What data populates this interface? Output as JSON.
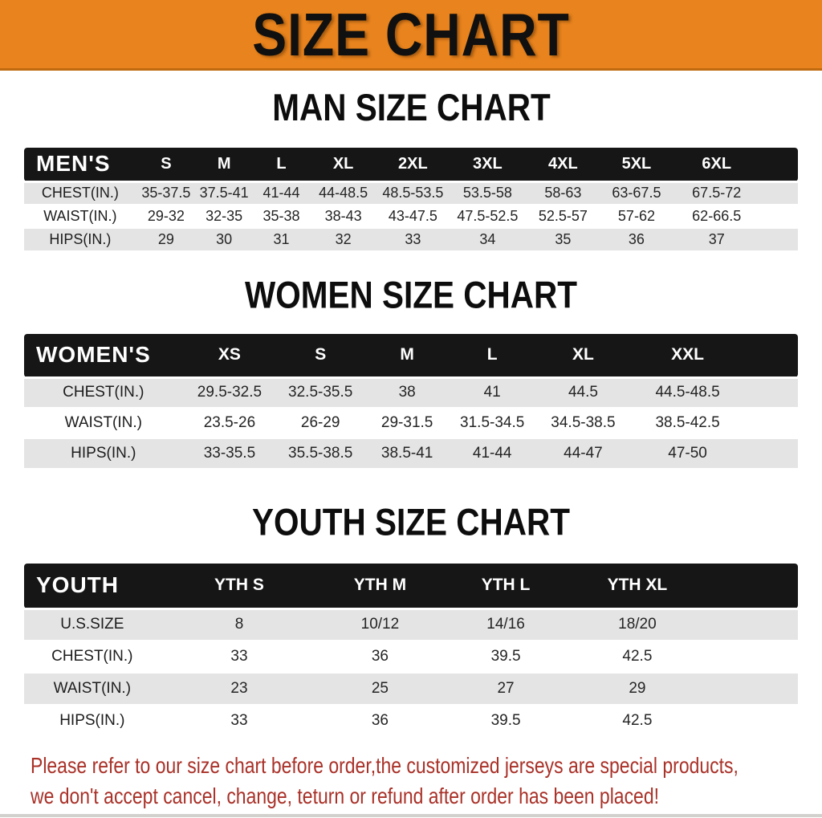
{
  "banner": {
    "title": "SIZE CHART"
  },
  "sections": [
    {
      "title": "MAN SIZE CHART",
      "group_label": "MEN'S",
      "columns": [
        "S",
        "M",
        "L",
        "XL",
        "2XL",
        "3XL",
        "4XL",
        "5XL",
        "6XL"
      ],
      "rows": [
        {
          "label": "CHEST(IN.)",
          "values": [
            "35-37.5",
            "37.5-41",
            "41-44",
            "44-48.5",
            "48.5-53.5",
            "53.5-58",
            "58-63",
            "63-67.5",
            "67.5-72"
          ]
        },
        {
          "label": "WAIST(IN.)",
          "values": [
            "29-32",
            "32-35",
            "35-38",
            "38-43",
            "43-47.5",
            "47.5-52.5",
            "52.5-57",
            "57-62",
            "62-66.5"
          ]
        },
        {
          "label": "HIPS(IN.)",
          "values": [
            "29",
            "30",
            "31",
            "32",
            "33",
            "34",
            "35",
            "36",
            "37"
          ]
        }
      ]
    },
    {
      "title": "WOMEN SIZE CHART",
      "group_label": "WOMEN'S",
      "columns": [
        "XS",
        "S",
        "M",
        "L",
        "XL",
        "XXL"
      ],
      "rows": [
        {
          "label": "CHEST(IN.)",
          "values": [
            "29.5-32.5",
            "32.5-35.5",
            "38",
            "41",
            "44.5",
            "44.5-48.5"
          ]
        },
        {
          "label": "WAIST(IN.)",
          "values": [
            "23.5-26",
            "26-29",
            "29-31.5",
            "31.5-34.5",
            "34.5-38.5",
            "38.5-42.5"
          ]
        },
        {
          "label": "HIPS(IN.)",
          "values": [
            "33-35.5",
            "35.5-38.5",
            "38.5-41",
            "41-44",
            "44-47",
            "47-50"
          ]
        }
      ]
    },
    {
      "title": "YOUTH SIZE CHART",
      "group_label": "YOUTH",
      "columns": [
        "YTH S",
        "YTH M",
        "YTH L",
        "YTH XL"
      ],
      "rows": [
        {
          "label": "U.S.SIZE",
          "values": [
            "8",
            "10/12",
            "14/16",
            "18/20"
          ]
        },
        {
          "label": "CHEST(IN.)",
          "values": [
            "33",
            "36",
            "39.5",
            "42.5"
          ]
        },
        {
          "label": "WAIST(IN.)",
          "values": [
            "23",
            "25",
            "27",
            "29"
          ]
        },
        {
          "label": "HIPS(IN.)",
          "values": [
            "33",
            "36",
            "39.5",
            "42.5"
          ]
        }
      ]
    }
  ],
  "disclaimer": {
    "line1": "Please refer to our size chart before order,the customized jerseys are special products,",
    "line2": "we don't accept cancel, change, teturn or refund after order has been placed!"
  },
  "colors": {
    "banner_bg": "#E8831D",
    "header_bar": "#161616",
    "row_alt_gray": "#E4E4E4",
    "disclaimer_red": "#A93128"
  }
}
